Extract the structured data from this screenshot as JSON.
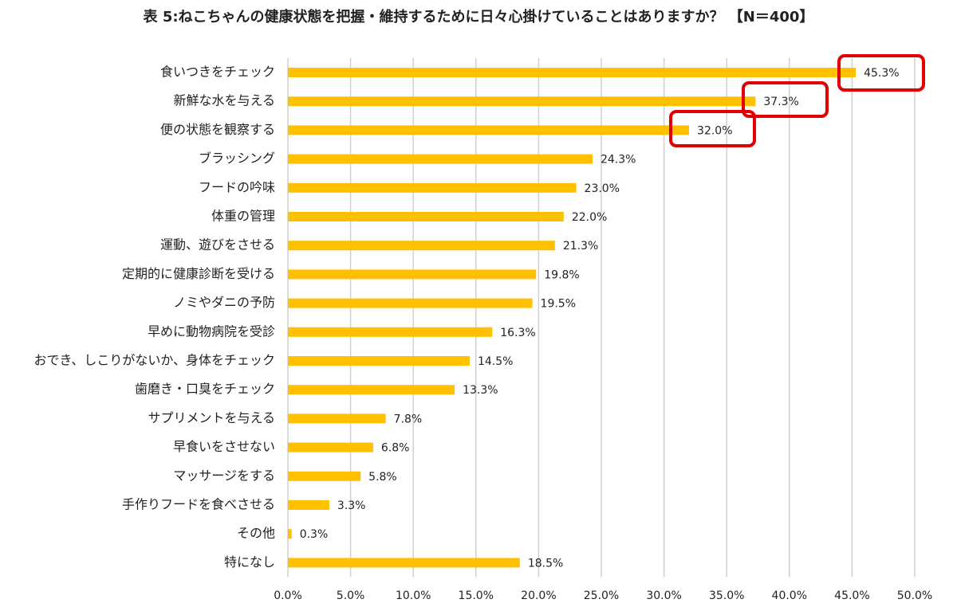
{
  "chart_data": {
    "type": "bar",
    "orientation": "horizontal",
    "title": "表 5:ねこちゃんの健康状態を把握・維持するために日々心掛けていることはありますか？ 【N＝400】",
    "categories": [
      "食いつきをチェック",
      "新鮮な水を与える",
      "便の状態を観察する",
      "ブラッシング",
      "フードの吟味",
      "体重の管理",
      "運動、遊びをさせる",
      "定期的に健康診断を受ける",
      "ノミやダニの予防",
      "早めに動物病院を受診",
      "おでき、しこりがないか、身体をチェック",
      "歯磨き・口臭をチェック",
      "サプリメントを与える",
      "早食いをさせない",
      "マッサージをする",
      "手作りフードを食べさせる",
      "その他",
      "特になし"
    ],
    "values": [
      45.3,
      37.3,
      32.0,
      24.3,
      23.0,
      22.0,
      21.3,
      19.8,
      19.5,
      16.3,
      14.5,
      13.3,
      7.8,
      6.8,
      5.8,
      3.3,
      0.3,
      18.5
    ],
    "value_labels": [
      "45.3%",
      "37.3%",
      "32.0%",
      "24.3%",
      "23.0%",
      "22.0%",
      "21.3%",
      "19.8%",
      "19.5%",
      "16.3%",
      "14.5%",
      "13.3%",
      "7.8%",
      "6.8%",
      "5.8%",
      "3.3%",
      "0.3%",
      "18.5%"
    ],
    "color": "#FFC000",
    "xlim": [
      0,
      50
    ],
    "xticks": [
      {
        "value": 0,
        "label": "0.0%"
      },
      {
        "value": 5,
        "label": "5.0%"
      },
      {
        "value": 10,
        "label": "10.0%"
      },
      {
        "value": 15,
        "label": "15.0%"
      },
      {
        "value": 20,
        "label": "20.0%"
      },
      {
        "value": 25,
        "label": "25.0%"
      },
      {
        "value": 30,
        "label": "30.0%"
      },
      {
        "value": 35,
        "label": "35.0%"
      },
      {
        "value": 40,
        "label": "40.0%"
      },
      {
        "value": 45,
        "label": "45.0%"
      },
      {
        "value": 50,
        "label": "50.0%"
      }
    ],
    "grid": true
  }
}
